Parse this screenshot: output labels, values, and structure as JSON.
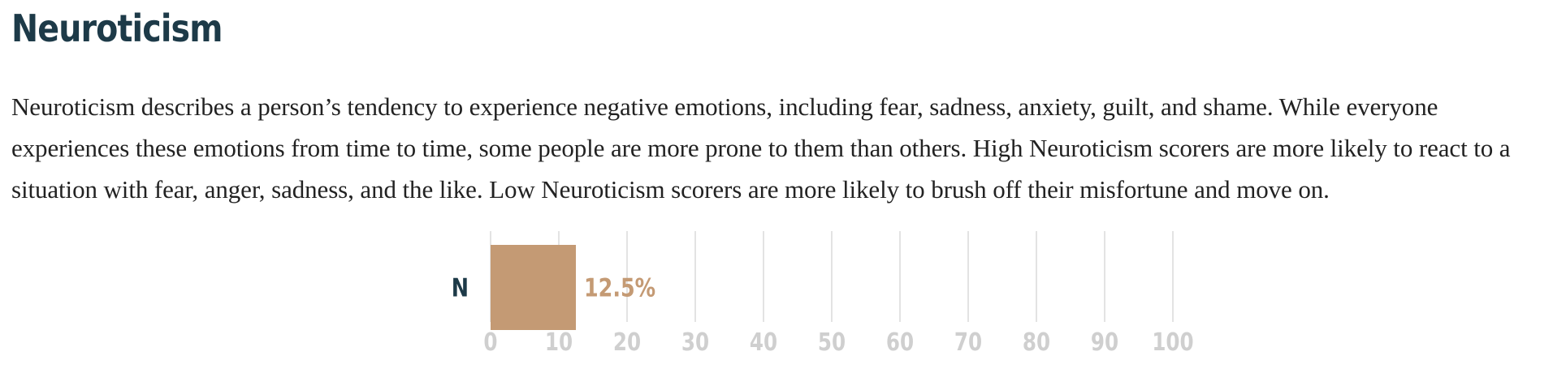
{
  "title": "Neuroticism",
  "description": "Neuroticism describes a person’s tendency to experience negative emotions, including fear, sadness, anxiety, guilt, and shame. While everyone experiences these emotions from time to time, some people are more prone to them than others. High Neuroticism scorers are more likely to react to a situation with fear, anger, sadness, and the like. Low Neuroticism scorers are more likely to brush off their misfortune and move on.",
  "chart_data": {
    "type": "bar",
    "orientation": "horizontal",
    "categories": [
      "N"
    ],
    "values": [
      12.5
    ],
    "value_labels": [
      "12.5%"
    ],
    "xlim": [
      0,
      100
    ],
    "xticks": [
      0,
      10,
      20,
      30,
      40,
      50,
      60,
      70,
      80,
      90,
      100
    ],
    "xtick_labels": [
      "0",
      "10",
      "20",
      "30",
      "40",
      "50",
      "60",
      "70",
      "80",
      "90",
      "100"
    ],
    "grid": "vertical",
    "colors": {
      "bar": "#c49a74",
      "value_label": "#c49a74",
      "category_label": "#1d3a48",
      "tick_label": "#cfcfcf",
      "grid": "#e3e3e3"
    }
  }
}
